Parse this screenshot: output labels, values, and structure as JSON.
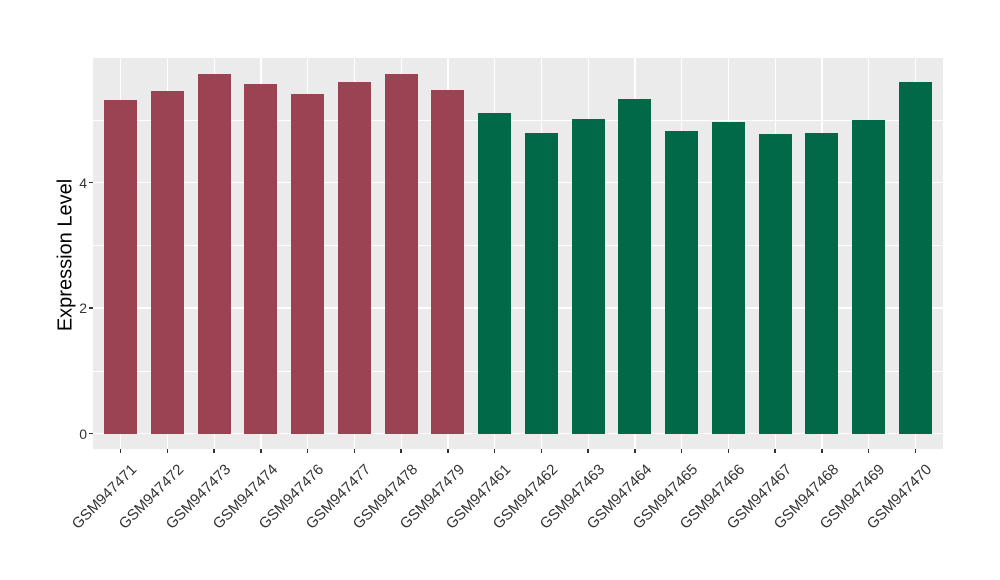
{
  "chart_data": {
    "type": "bar",
    "title": "",
    "xlabel": "",
    "ylabel": "Expression Level",
    "categories": [
      "GSM947471",
      "GSM947472",
      "GSM947473",
      "GSM947474",
      "GSM947476",
      "GSM947477",
      "GSM947478",
      "GSM947479",
      "GSM947461",
      "GSM947462",
      "GSM947463",
      "GSM947464",
      "GSM947465",
      "GSM947466",
      "GSM947467",
      "GSM947468",
      "GSM947469",
      "GSM947470"
    ],
    "values": [
      5.32,
      5.46,
      5.73,
      5.58,
      5.41,
      5.6,
      5.74,
      5.47,
      5.11,
      4.8,
      5.01,
      5.33,
      4.83,
      4.96,
      4.78,
      4.79,
      5.0,
      5.61
    ],
    "bar_groups": [
      0,
      0,
      0,
      0,
      0,
      0,
      0,
      0,
      1,
      1,
      1,
      1,
      1,
      1,
      1,
      1,
      1,
      1
    ],
    "group_colors": [
      "#9B4352",
      "#016948"
    ],
    "yticks": [
      0,
      2,
      4
    ],
    "major_gridlines": [
      0,
      2,
      4,
      6
    ],
    "minor_gridlines": [
      1,
      3,
      5
    ],
    "ylim": [
      -0.25,
      6.0
    ],
    "grid": true,
    "legend_position": "none",
    "panel_background": "#EBEBEB",
    "gridline_color": "#FFFFFF",
    "tick_label_color": "#333333",
    "axis_title_color": "#000000"
  }
}
